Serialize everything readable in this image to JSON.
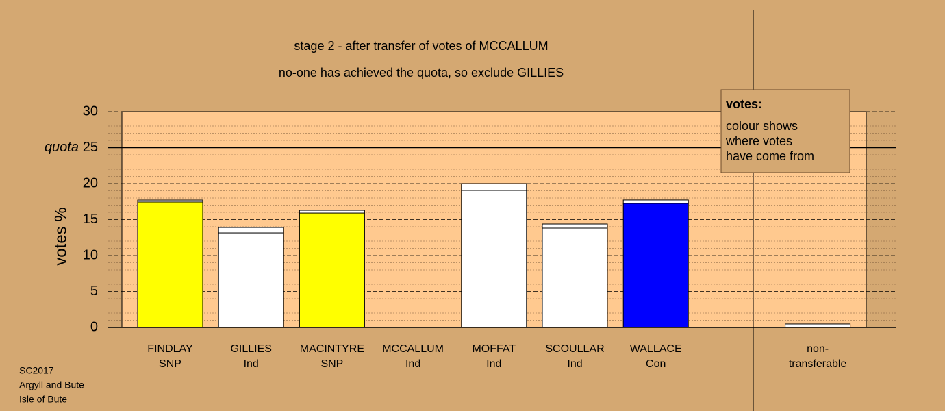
{
  "chart_data": {
    "type": "stacked-bar",
    "title": "stage 2 - after transfer of votes of MCCALLUM",
    "subtitle": "no-one has achieved the quota, so exclude GILLIES",
    "y_label": "votes %",
    "categories": [
      "FINDLAY",
      "GILLIES",
      "MACINTYRE",
      "MCCALLUM",
      "MOFFAT",
      "SCOULLAR",
      "WALLACE",
      "non-"
    ],
    "parties": [
      "SNP",
      "Ind",
      "SNP",
      "Ind",
      "Ind",
      "Ind",
      "Con",
      "transferable"
    ],
    "series": [
      {
        "colors": [
          "#ffff00",
          "#ffffff",
          "#ffff00",
          "#ffffff",
          "#ffffff",
          "#ffffff",
          "#0000ff",
          "#ffffff"
        ],
        "values": [
          17.43,
          13.14,
          15.9,
          0,
          19.05,
          13.81,
          17.24,
          0
        ]
      },
      {
        "color": "#ffffff",
        "values": [
          0.28,
          0.76,
          0.38,
          0,
          0.95,
          0.57,
          0.48,
          0.48
        ]
      }
    ],
    "ylim": [
      0,
      30
    ],
    "yticks": [
      0,
      5,
      10,
      15,
      20,
      25,
      30
    ],
    "minor_yticks": [
      1,
      2,
      3,
      4,
      6,
      7,
      8,
      9,
      11,
      12,
      13,
      14,
      16,
      17,
      18,
      19,
      21,
      22,
      23,
      24,
      26,
      27,
      28,
      29
    ],
    "grid": true,
    "quota": {
      "label": "quota",
      "value": 25
    },
    "legend_box": {
      "title": "votes:",
      "lines": [
        "colour shows",
        "where votes",
        "have come from"
      ]
    },
    "notes": [
      "SC2017",
      "Argyll and Bute",
      "Isle of Bute"
    ]
  }
}
